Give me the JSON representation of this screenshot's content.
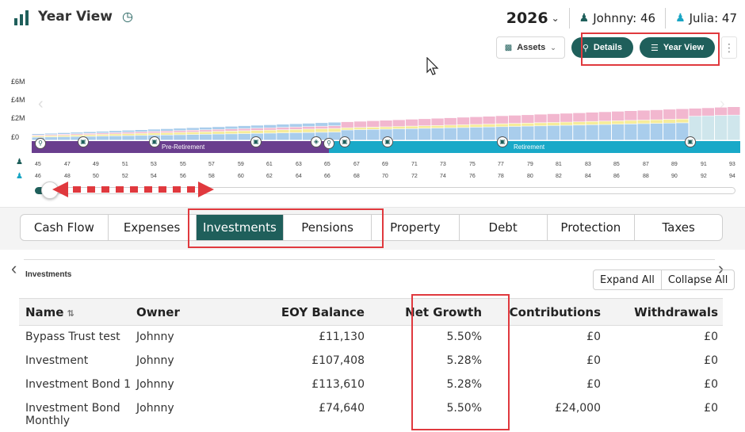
{
  "header": {
    "title": "Year View",
    "year": "2026",
    "people": [
      {
        "name": "Johnny",
        "age": "46",
        "label": "Johnny: 46"
      },
      {
        "name": "Julia",
        "age": "47",
        "label": "Julia: 47"
      }
    ]
  },
  "toolbar": {
    "assets_label": "Assets",
    "details_label": "Details",
    "yearview_label": "Year View",
    "more_label": "⋮"
  },
  "timeline": {
    "y_labels": [
      "£6M",
      "£4M",
      "£2M",
      "£0"
    ],
    "pre_retirement_label": "Pre-Retirement",
    "retirement_label": "Retirement",
    "johnny_ages": [
      "45",
      "47",
      "49",
      "51",
      "53",
      "55",
      "57",
      "59",
      "61",
      "63",
      "65",
      "67",
      "69",
      "71",
      "73",
      "75",
      "77",
      "79",
      "81",
      "83",
      "85",
      "87",
      "89",
      "91",
      "93"
    ],
    "julia_ages": [
      "46",
      "48",
      "50",
      "52",
      "54",
      "56",
      "58",
      "60",
      "62",
      "64",
      "66",
      "68",
      "70",
      "72",
      "74",
      "76",
      "78",
      "80",
      "82",
      "84",
      "86",
      "88",
      "90",
      "92",
      "94"
    ],
    "bar_count": 55,
    "retirement_start_index": 24,
    "colors": {
      "blue": "#a9cdec",
      "pink": "#f2b7cf",
      "yellow": "#f6ec9a",
      "pre": "#6a3e8e",
      "ret": "#19a9c8",
      "accent": "#1f5f5b",
      "highlight": "#e0393e"
    }
  },
  "tabs": [
    "Cash Flow",
    "Expenses",
    "Investments",
    "Pensions",
    "Property",
    "Debt",
    "Protection",
    "Taxes"
  ],
  "active_tab": "Investments",
  "panel": {
    "title": "Investments",
    "expand_all": "Expand All",
    "collapse_all": "Collapse All"
  },
  "table": {
    "columns": {
      "name": "Name",
      "owner": "Owner",
      "eoy": "EOY Balance",
      "growth": "Net Growth",
      "contrib": "Contributions",
      "withdraw": "Withdrawals"
    },
    "rows": [
      {
        "name": "Bypass Trust test",
        "owner": "Johnny",
        "eoy": "£11,130",
        "growth": "5.50%",
        "contrib": "£0",
        "withdraw": "£0"
      },
      {
        "name": "Investment",
        "owner": "Johnny",
        "eoy": "£107,408",
        "growth": "5.28%",
        "contrib": "£0",
        "withdraw": "£0"
      },
      {
        "name": "Investment Bond 1",
        "owner": "Johnny",
        "eoy": "£113,610",
        "growth": "5.28%",
        "contrib": "£0",
        "withdraw": "£0"
      },
      {
        "name": "Investment Bond Monthly",
        "owner": "Johnny",
        "eoy": "£74,640",
        "growth": "5.50%",
        "contrib": "£24,000",
        "withdraw": "£0"
      }
    ]
  }
}
